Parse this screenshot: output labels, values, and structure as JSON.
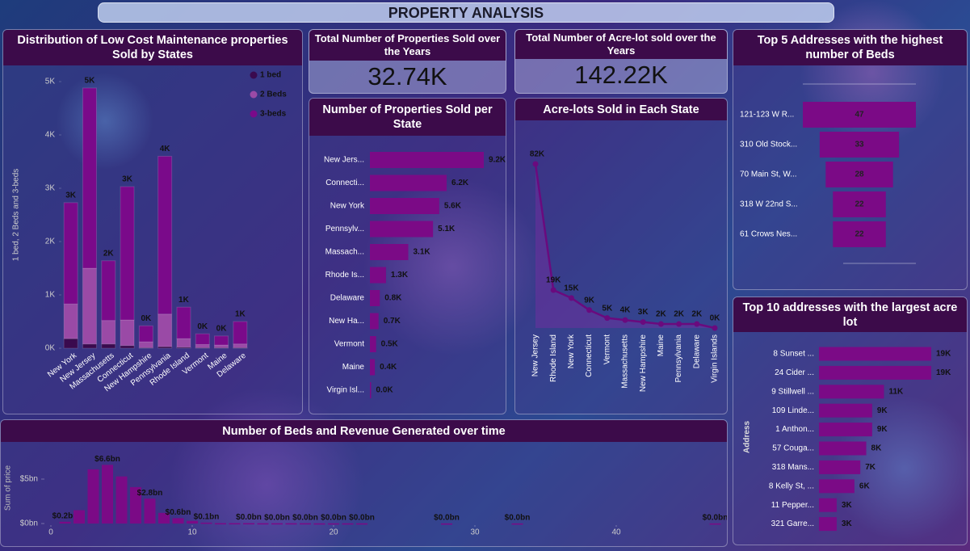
{
  "title": "PROPERTY ANALYSIS",
  "kpis": [
    {
      "title": "Total Number of Properties Sold over the Years",
      "value": "32.74K"
    },
    {
      "title": "Total Number of Acre-lot sold over the Years",
      "value": "142.22K"
    }
  ],
  "chart_data": [
    {
      "type": "stacked_bar",
      "title": "Distribution of Low Cost Maintenance properties Sold by States",
      "y_label": "1 bed, 2 Beds and 3-beds",
      "categories": [
        "New York",
        "New Jersey",
        "Massachusetts",
        "Connecticut",
        "New Hampshire",
        "Pennsylvania",
        "Rhode Island",
        "Vermont",
        "Maine",
        "Delaware"
      ],
      "series": [
        {
          "name": "1 bed",
          "color": "#3a0a4e",
          "values": [
            180,
            80,
            80,
            50,
            10,
            30,
            20,
            10,
            10,
            10
          ]
        },
        {
          "name": "2 Beds",
          "color": "#9a4aa6",
          "values": [
            650,
            1420,
            440,
            480,
            110,
            610,
            160,
            60,
            50,
            70
          ]
        },
        {
          "name": "3-beds",
          "color": "#7a0a8a",
          "values": [
            1900,
            3380,
            1120,
            2500,
            300,
            2960,
            590,
            200,
            170,
            420
          ]
        }
      ],
      "total_labels": [
        "3K",
        "5K",
        "2K",
        "3K",
        "0K",
        "4K",
        "1K",
        "0K",
        "0K",
        "1K"
      ],
      "ylim": [
        0,
        5000
      ],
      "yticks": [
        {
          "value": 0,
          "label": "0K"
        },
        {
          "value": 1000,
          "label": "1K"
        },
        {
          "value": 2000,
          "label": "2K"
        },
        {
          "value": 3000,
          "label": "3K"
        },
        {
          "value": 4000,
          "label": "4K"
        },
        {
          "value": 5000,
          "label": "5K"
        }
      ],
      "legend": "top-right"
    },
    {
      "type": "bar_horizontal",
      "title": "Number of Properties Sold per State",
      "color": "#7b0a86",
      "categories": [
        "New Jers...",
        "Connecti...",
        "New York",
        "Pennsylv...",
        "Massach...",
        "Rhode Is...",
        "Delaware",
        "New Ha...",
        "Vermont",
        "Maine",
        "Virgin Isl..."
      ],
      "values": [
        9200,
        6200,
        5600,
        5100,
        3100,
        1300,
        800,
        700,
        500,
        400,
        0
      ],
      "value_labels": [
        "9.2K",
        "6.2K",
        "5.6K",
        "5.1K",
        "3.1K",
        "1.3K",
        "0.8K",
        "0.7K",
        "0.5K",
        "0.4K",
        "0.0K"
      ]
    },
    {
      "type": "line",
      "title": "Acre-lots Sold in Each State",
      "color": "#6a0a7e",
      "categories": [
        "New Jersey",
        "Rhode Island",
        "New York",
        "Connecticut",
        "Vermont",
        "Massachusetts",
        "New Hampshire",
        "Maine",
        "Pennsylvania",
        "Delaware",
        "Virgin Islands"
      ],
      "values": [
        82000,
        19000,
        15000,
        9000,
        5000,
        4000,
        3000,
        2000,
        2000,
        2000,
        0
      ],
      "value_labels": [
        "82K",
        "19K",
        "15K",
        "9K",
        "5K",
        "4K",
        "3K",
        "2K",
        "2K",
        "2K",
        "0K"
      ]
    },
    {
      "type": "funnel",
      "title": "Top 5 Addresses with the highest number of Beds",
      "color": "#7b0a86",
      "categories": [
        "121-123 W R...",
        "310 Old Stock...",
        "70 Main St, W...",
        "318 W 22nd S...",
        "61 Crows Nes..."
      ],
      "values": [
        47,
        33,
        28,
        22,
        22
      ]
    },
    {
      "type": "bar_horizontal",
      "title": "Top 10 addresses with the largest acre lot",
      "color": "#7b0a86",
      "y_label": "Address",
      "categories": [
        "8 Sunset ...",
        "24 Cider ...",
        "9 Stillwell ...",
        "109 Linde...",
        "1 Anthon...",
        "57 Couga...",
        "318 Mans...",
        "8 Kelly St, ...",
        "11 Pepper...",
        "321 Garre..."
      ],
      "values": [
        19000,
        19000,
        11000,
        9000,
        9000,
        8000,
        7000,
        6000,
        3000,
        3000
      ],
      "value_labels": [
        "19K",
        "19K",
        "11K",
        "9K",
        "9K",
        "8K",
        "7K",
        "6K",
        "3K",
        "3K"
      ]
    },
    {
      "type": "bar",
      "title": "Number of Beds and Revenue Generated over time",
      "color": "#7b0a86",
      "y_label": "Sum of price",
      "x": [
        1,
        2,
        3,
        4,
        5,
        6,
        7,
        8,
        9,
        10,
        11,
        12,
        13,
        14,
        15,
        16,
        17,
        18,
        19,
        20,
        21,
        22,
        28,
        33,
        47
      ],
      "values": [
        0.2,
        1.5,
        6.1,
        6.6,
        5.3,
        4.1,
        2.8,
        1.2,
        0.6,
        0.3,
        0.1,
        0.04,
        0.04,
        0.04,
        0.03,
        0.03,
        0.03,
        0.03,
        0.02,
        0.02,
        0.02,
        0.02,
        0.01,
        0.01,
        0.01
      ],
      "value_labels": [
        "$0.2bn",
        null,
        null,
        "$6.6bn",
        null,
        null,
        "$2.8bn",
        null,
        "$0.6bn",
        null,
        "$0.1bn",
        null,
        null,
        "$0.0bn",
        null,
        "$0.0bn",
        null,
        "$0.0bn",
        null,
        "$0.0bn",
        null,
        "$0.0bn",
        "$0.0bn",
        "$0.0bn",
        "$0.0bn"
      ],
      "xlim": [
        0,
        48
      ],
      "xticks": [
        0,
        10,
        20,
        30,
        40
      ],
      "ylim": [
        0,
        8
      ],
      "yticks": [
        {
          "value": 0,
          "label": "$0bn"
        },
        {
          "value": 5,
          "label": "$5bn"
        }
      ]
    }
  ]
}
